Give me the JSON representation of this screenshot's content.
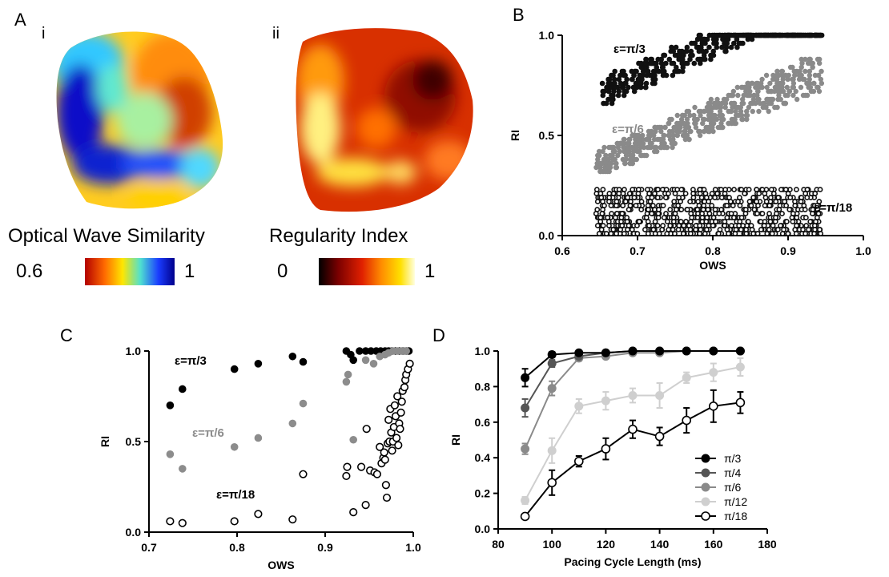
{
  "panel_a": {
    "label": "A",
    "sub_i": "i",
    "sub_ii": "ii",
    "colorbar_ows": {
      "title": "Optical Wave Similarity",
      "min_label": "0.6",
      "max_label": "1",
      "stops": [
        "#b30000",
        "#ff6a00",
        "#ffe600",
        "#4fe0d0",
        "#1a3cff",
        "#00008c"
      ]
    },
    "colorbar_ri": {
      "title": "Regularity Index",
      "min_label": "0",
      "max_label": "1",
      "stops": [
        "#000000",
        "#7a0000",
        "#e02000",
        "#ff8c00",
        "#ffe000",
        "#ffffe0"
      ]
    }
  },
  "chart_data": [
    {
      "panel": "B",
      "type": "scatter",
      "xlabel": "OWS",
      "ylabel": "RI",
      "xlim": [
        0.6,
        1.0
      ],
      "ylim": [
        0.0,
        1.0
      ],
      "xticks": [
        "0.6",
        "0.7",
        "0.8",
        "0.9",
        "1.0"
      ],
      "yticks": [
        "0.0",
        "0.5",
        "1.0"
      ],
      "series": [
        {
          "name": "ε=π/3",
          "color": "#111111",
          "fill": "filled",
          "range": {
            "x": [
              0.65,
              0.945
            ],
            "y_start": [
              0.64,
              0.82
            ],
            "y_end": [
              1.0,
              1.0
            ]
          }
        },
        {
          "name": "ε=π/6",
          "color": "#8a8a8a",
          "fill": "filled",
          "range": {
            "x": [
              0.645,
              0.945
            ],
            "y_start": [
              0.3,
              0.42
            ],
            "y_end": [
              0.72,
              0.92
            ]
          }
        },
        {
          "name": "ε=π/18",
          "color": "#111111",
          "fill": "open",
          "range": {
            "x": [
              0.645,
              0.945
            ],
            "y": [
              0.01,
              0.23
            ]
          }
        }
      ]
    },
    {
      "panel": "C",
      "type": "scatter",
      "xlabel": "OWS",
      "ylabel": "RI",
      "xlim": [
        0.7,
        1.0
      ],
      "ylim": [
        0.0,
        1.0
      ],
      "xticks": [
        "0.7",
        "0.8",
        "0.9",
        "1.0"
      ],
      "yticks": [
        "0.0",
        "0.5",
        "1.0"
      ],
      "series": [
        {
          "name": "ε=π/3",
          "color": "#000000",
          "fill": "filled",
          "points": [
            [
              0.724,
              0.7
            ],
            [
              0.738,
              0.79
            ],
            [
              0.797,
              0.9
            ],
            [
              0.824,
              0.93
            ],
            [
              0.863,
              0.97
            ],
            [
              0.875,
              0.94
            ],
            [
              0.924,
              1.0
            ],
            [
              0.929,
              0.98
            ],
            [
              0.932,
              0.95
            ],
            [
              0.939,
              1.0
            ],
            [
              0.946,
              1.0
            ],
            [
              0.952,
              1.0
            ],
            [
              0.958,
              1.0
            ],
            [
              0.963,
              1.0
            ],
            [
              0.968,
              1.0
            ],
            [
              0.972,
              1.0
            ],
            [
              0.976,
              1.0
            ],
            [
              0.98,
              1.0
            ],
            [
              0.984,
              1.0
            ],
            [
              0.988,
              1.0
            ],
            [
              0.992,
              1.0
            ],
            [
              0.995,
              1.0
            ]
          ]
        },
        {
          "name": "ε=π/6",
          "color": "#8c8c8c",
          "fill": "filled",
          "points": [
            [
              0.724,
              0.43
            ],
            [
              0.738,
              0.35
            ],
            [
              0.797,
              0.47
            ],
            [
              0.824,
              0.52
            ],
            [
              0.863,
              0.6
            ],
            [
              0.875,
              0.71
            ],
            [
              0.924,
              0.83
            ],
            [
              0.926,
              0.87
            ],
            [
              0.932,
              0.51
            ],
            [
              0.946,
              0.95
            ],
            [
              0.955,
              0.93
            ],
            [
              0.962,
              0.97
            ],
            [
              0.968,
              0.98
            ],
            [
              0.972,
              0.99
            ],
            [
              0.977,
              1.0
            ],
            [
              0.982,
              1.0
            ],
            [
              0.987,
              1.0
            ],
            [
              0.992,
              1.0
            ]
          ]
        },
        {
          "name": "ε=π/18",
          "color": "#000000",
          "fill": "open",
          "points": [
            [
              0.724,
              0.06
            ],
            [
              0.738,
              0.05
            ],
            [
              0.797,
              0.06
            ],
            [
              0.824,
              0.1
            ],
            [
              0.863,
              0.07
            ],
            [
              0.875,
              0.32
            ],
            [
              0.924,
              0.31
            ],
            [
              0.925,
              0.36
            ],
            [
              0.932,
              0.11
            ],
            [
              0.941,
              0.36
            ],
            [
              0.946,
              0.15
            ],
            [
              0.947,
              0.57
            ],
            [
              0.951,
              0.34
            ],
            [
              0.956,
              0.33
            ],
            [
              0.959,
              0.32
            ],
            [
              0.962,
              0.47
            ],
            [
              0.964,
              0.38
            ],
            [
              0.966,
              0.41
            ],
            [
              0.967,
              0.44
            ],
            [
              0.968,
              0.4
            ],
            [
              0.969,
              0.26
            ],
            [
              0.97,
              0.19
            ],
            [
              0.971,
              0.49
            ],
            [
              0.972,
              0.62
            ],
            [
              0.973,
              0.5
            ],
            [
              0.974,
              0.68
            ],
            [
              0.975,
              0.55
            ],
            [
              0.976,
              0.45
            ],
            [
              0.977,
              0.5
            ],
            [
              0.978,
              0.58
            ],
            [
              0.979,
              0.7
            ],
            [
              0.98,
              0.64
            ],
            [
              0.981,
              0.52
            ],
            [
              0.982,
              0.75
            ],
            [
              0.983,
              0.48
            ],
            [
              0.984,
              0.6
            ],
            [
              0.985,
              0.57
            ],
            [
              0.986,
              0.66
            ],
            [
              0.987,
              0.72
            ],
            [
              0.988,
              0.78
            ],
            [
              0.99,
              0.8
            ],
            [
              0.991,
              0.84
            ],
            [
              0.992,
              0.87
            ],
            [
              0.994,
              0.9
            ],
            [
              0.996,
              0.93
            ]
          ]
        }
      ]
    },
    {
      "panel": "D",
      "type": "line",
      "xlabel": "Pacing Cycle Length (ms)",
      "ylabel": "RI",
      "xlim": [
        80,
        180
      ],
      "ylim": [
        0.0,
        1.0
      ],
      "xticks": [
        "80",
        "100",
        "120",
        "140",
        "160",
        "180"
      ],
      "yticks": [
        "0.0",
        "0.2",
        "0.4",
        "0.6",
        "0.8",
        "1.0"
      ],
      "legend_position": "bottom-right",
      "x": [
        90,
        100,
        110,
        120,
        130,
        140,
        150,
        160,
        170
      ],
      "series": [
        {
          "name": "π/3",
          "color": "#000000",
          "fill": "filled",
          "values": [
            0.85,
            0.98,
            0.99,
            0.99,
            1.0,
            1.0,
            1.0,
            1.0,
            1.0
          ],
          "errors": [
            0.05,
            0.015,
            0.01,
            0.01,
            0.005,
            0.005,
            0.005,
            0.005,
            0.005
          ]
        },
        {
          "name": "π/4",
          "color": "#555555",
          "fill": "filled",
          "values": [
            0.68,
            0.93,
            0.97,
            0.99,
            1.0,
            1.0,
            1.0,
            1.0,
            1.0
          ],
          "errors": [
            0.05,
            0.02,
            0.01,
            0.01,
            0.005,
            0.005,
            0.005,
            0.005,
            0.005
          ]
        },
        {
          "name": "π/6",
          "color": "#8a8a8a",
          "fill": "filled",
          "values": [
            0.45,
            0.79,
            0.96,
            0.97,
            0.99,
            0.99,
            1.0,
            1.0,
            1.0
          ],
          "errors": [
            0.03,
            0.04,
            0.015,
            0.01,
            0.01,
            0.01,
            0.005,
            0.005,
            0.005
          ]
        },
        {
          "name": "π/12",
          "color": "#cfcfcf",
          "fill": "filled",
          "values": [
            0.16,
            0.44,
            0.69,
            0.72,
            0.75,
            0.75,
            0.85,
            0.88,
            0.91
          ],
          "errors": [
            0.02,
            0.07,
            0.04,
            0.05,
            0.04,
            0.07,
            0.03,
            0.05,
            0.05
          ]
        },
        {
          "name": "π/18",
          "color": "#000000",
          "fill": "open",
          "values": [
            0.07,
            0.26,
            0.38,
            0.45,
            0.56,
            0.52,
            0.61,
            0.69,
            0.71
          ],
          "errors": [
            0.01,
            0.07,
            0.03,
            0.06,
            0.05,
            0.05,
            0.07,
            0.09,
            0.06
          ]
        }
      ]
    }
  ]
}
